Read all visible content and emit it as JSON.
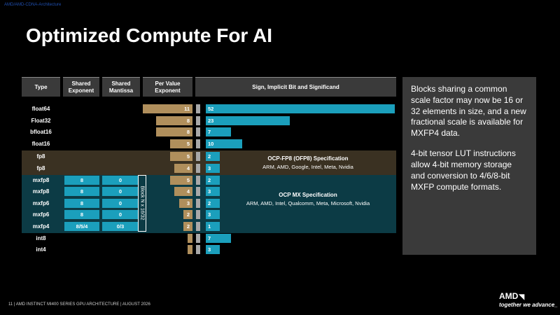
{
  "corner_link": "AMD/AMD-CDNA-Architecture",
  "title": "Optimized Compute For AI",
  "headers": {
    "type": "Type",
    "shared_exponent": "Shared Exponent",
    "shared_mantissa": "Shared Mantissa",
    "per_value_exponent": "Per Value Exponent",
    "significand": "Sign, Implicit Bit and Significand"
  },
  "rows": [
    {
      "type": "float64",
      "shared_exponent": "",
      "shared_mantissa": "",
      "exponent": "11",
      "significand": "52",
      "group": "none"
    },
    {
      "type": "Float32",
      "shared_exponent": "",
      "shared_mantissa": "",
      "exponent": "8",
      "significand": "23",
      "group": "none"
    },
    {
      "type": "bfloat16",
      "shared_exponent": "",
      "shared_mantissa": "",
      "exponent": "8",
      "significand": "7",
      "group": "none"
    },
    {
      "type": "float16",
      "shared_exponent": "",
      "shared_mantissa": "",
      "exponent": "5",
      "significand": "10",
      "group": "none"
    },
    {
      "type": "fp8",
      "shared_exponent": "",
      "shared_mantissa": "",
      "exponent": "5",
      "significand": "2",
      "group": "fp8"
    },
    {
      "type": "fp8",
      "shared_exponent": "",
      "shared_mantissa": "",
      "exponent": "4",
      "significand": "3",
      "group": "fp8"
    },
    {
      "type": "mxfp8",
      "shared_exponent": "8",
      "shared_mantissa": "0",
      "exponent": "5",
      "significand": "2",
      "group": "mx"
    },
    {
      "type": "mxfp8",
      "shared_exponent": "8",
      "shared_mantissa": "0",
      "exponent": "4",
      "significand": "3",
      "group": "mx"
    },
    {
      "type": "mxfp6",
      "shared_exponent": "8",
      "shared_mantissa": "0",
      "exponent": "3",
      "significand": "2",
      "group": "mx"
    },
    {
      "type": "mxfp6",
      "shared_exponent": "8",
      "shared_mantissa": "0",
      "exponent": "2",
      "significand": "3",
      "group": "mx"
    },
    {
      "type": "mxfp4",
      "shared_exponent": "8/5/4",
      "shared_mantissa": "0/3",
      "exponent": "2",
      "significand": "1",
      "group": "mx"
    },
    {
      "type": "int8",
      "shared_exponent": "",
      "shared_mantissa": "",
      "exponent": "",
      "significand": "7",
      "group": "none"
    },
    {
      "type": "int4",
      "shared_exponent": "",
      "shared_mantissa": "",
      "exponent": "",
      "significand": "3",
      "group": "none"
    }
  ],
  "block_label": "Block N x 16/32",
  "ocp_fp8": {
    "title": "OCP-FP8 (OFP8) Specification",
    "members": "ARM, AMD, Google, Intel, Meta, Nvidia"
  },
  "ocp_mx": {
    "title": "OCP MX Specification",
    "members": "ARM, AMD, Intel, Qualcomm, Meta, Microsoft, Nvidia"
  },
  "sidebar": {
    "paragraph1": "Blocks sharing a common scale factor may now be 16 or 32 elements in size, and a new fractional scale is available for MXFP4 data.",
    "paragraph2": "4-bit tensor LUT instructions allow 4-bit memory storage and conversion to 4/6/8-bit MXFP compute formats."
  },
  "footer": "11   |   AMD INSTINCT MI400 SERIES GPU ARCHITECTURE  |  AUGUST 2026",
  "logo": "AMD",
  "tagline": "together we advance_",
  "colors": {
    "teal": "#1b9fbc",
    "gold": "#b08f5c",
    "implicit": "#a8a8a8",
    "fp8_band": "#3a3122",
    "mx_band": "#0c3b45",
    "panel": "#3a3a3a"
  }
}
